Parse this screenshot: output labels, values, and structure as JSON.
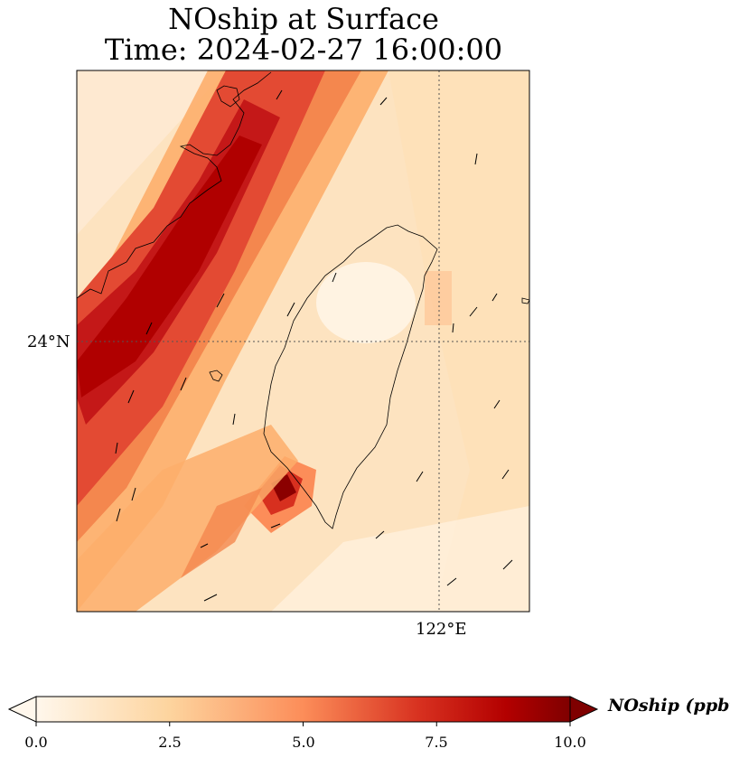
{
  "title": {
    "line1": "NOship at Surface",
    "line2": "Time: 2024-02-27 16:00:00"
  },
  "map": {
    "lat_labels": [
      {
        "value": 24,
        "label": "24°N"
      }
    ],
    "lon_labels": [
      {
        "value": 122,
        "label": "122°E"
      }
    ],
    "gridlines": "dotted"
  },
  "colorbar": {
    "label": "NOship (ppbv)",
    "colormap": "OrRd",
    "min": 0.0,
    "max": 10.0,
    "extend": "both",
    "ticks": [
      "0.0",
      "2.5",
      "5.0",
      "7.5",
      "10.0"
    ],
    "colors": [
      "#fff7ec",
      "#fdd49e",
      "#fc8d59",
      "#d7301f",
      "#b30000",
      "#7f0000"
    ]
  }
}
